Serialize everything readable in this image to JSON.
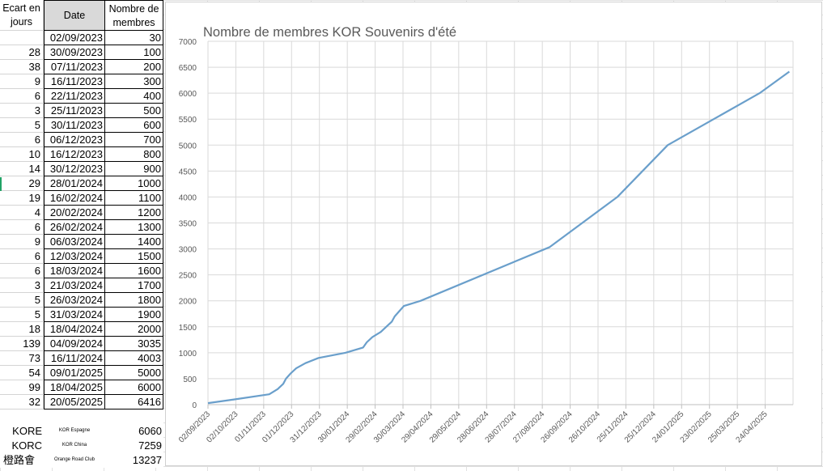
{
  "table": {
    "headers": {
      "gap": "Ecart en jours",
      "date": "Date",
      "members": "Nombre de membres"
    },
    "rows": [
      {
        "gap": "",
        "date": "02/09/2023",
        "members": "30"
      },
      {
        "gap": "28",
        "date": "30/09/2023",
        "members": "100"
      },
      {
        "gap": "38",
        "date": "07/11/2023",
        "members": "200"
      },
      {
        "gap": "9",
        "date": "16/11/2023",
        "members": "300"
      },
      {
        "gap": "6",
        "date": "22/11/2023",
        "members": "400"
      },
      {
        "gap": "3",
        "date": "25/11/2023",
        "members": "500"
      },
      {
        "gap": "5",
        "date": "30/11/2023",
        "members": "600"
      },
      {
        "gap": "6",
        "date": "06/12/2023",
        "members": "700"
      },
      {
        "gap": "10",
        "date": "16/12/2023",
        "members": "800"
      },
      {
        "gap": "14",
        "date": "30/12/2023",
        "members": "900"
      },
      {
        "gap": "29",
        "date": "28/01/2024",
        "members": "1000"
      },
      {
        "gap": "19",
        "date": "16/02/2024",
        "members": "1100"
      },
      {
        "gap": "4",
        "date": "20/02/2024",
        "members": "1200"
      },
      {
        "gap": "6",
        "date": "26/02/2024",
        "members": "1300"
      },
      {
        "gap": "9",
        "date": "06/03/2024",
        "members": "1400"
      },
      {
        "gap": "6",
        "date": "12/03/2024",
        "members": "1500"
      },
      {
        "gap": "6",
        "date": "18/03/2024",
        "members": "1600"
      },
      {
        "gap": "3",
        "date": "21/03/2024",
        "members": "1700"
      },
      {
        "gap": "5",
        "date": "26/03/2024",
        "members": "1800"
      },
      {
        "gap": "5",
        "date": "31/03/2024",
        "members": "1900"
      },
      {
        "gap": "18",
        "date": "18/04/2024",
        "members": "2000"
      },
      {
        "gap": "139",
        "date": "04/09/2024",
        "members": "3035"
      },
      {
        "gap": "73",
        "date": "16/11/2024",
        "members": "4003"
      },
      {
        "gap": "54",
        "date": "09/01/2025",
        "members": "5000"
      },
      {
        "gap": "99",
        "date": "18/04/2025",
        "members": "6000"
      },
      {
        "gap": "32",
        "date": "20/05/2025",
        "members": "6416"
      }
    ],
    "summary": [
      {
        "code": "KORE",
        "logo_text": "KOR Espagne",
        "value": "6060"
      },
      {
        "code": "KORC",
        "logo_text": "KOR China",
        "value": "7259"
      },
      {
        "code": "橙路會",
        "logo_text": "Orange Road Club",
        "value": "13237"
      }
    ]
  },
  "chart_data": {
    "type": "line",
    "title": "Nombre de membres KOR Souvenirs d'été",
    "x_dates": [
      "02/09/2023",
      "30/09/2023",
      "07/11/2023",
      "16/11/2023",
      "22/11/2023",
      "25/11/2023",
      "30/11/2023",
      "06/12/2023",
      "16/12/2023",
      "30/12/2023",
      "28/01/2024",
      "16/02/2024",
      "20/02/2024",
      "26/02/2024",
      "06/03/2024",
      "12/03/2024",
      "18/03/2024",
      "21/03/2024",
      "26/03/2024",
      "31/03/2024",
      "18/04/2024",
      "04/09/2024",
      "16/11/2024",
      "09/01/2025",
      "18/04/2025",
      "20/05/2025"
    ],
    "values": [
      30,
      100,
      200,
      300,
      400,
      500,
      600,
      700,
      800,
      900,
      1000,
      1100,
      1200,
      1300,
      1400,
      1500,
      1600,
      1700,
      1800,
      1900,
      2000,
      3035,
      4003,
      5000,
      6000,
      6416
    ],
    "x_tick_labels": [
      "02/09/2023",
      "02/10/2023",
      "01/11/2023",
      "01/12/2023",
      "31/12/2023",
      "30/01/2024",
      "29/02/2024",
      "30/03/2024",
      "29/04/2024",
      "29/05/2024",
      "28/06/2024",
      "28/07/2024",
      "27/08/2024",
      "26/09/2024",
      "26/10/2024",
      "25/11/2024",
      "25/12/2024",
      "24/01/2025",
      "23/02/2025",
      "25/03/2025",
      "24/04/2025"
    ],
    "y_tick_labels": [
      "0",
      "500",
      "1000",
      "1500",
      "2000",
      "2500",
      "3000",
      "3500",
      "4000",
      "4500",
      "5000",
      "5500",
      "6000",
      "6500",
      "7000"
    ],
    "ylim": [
      0,
      7000
    ],
    "xlim": [
      "02/09/2023",
      "24/05/2025"
    ],
    "grid": true,
    "line_color": "#6a9fcb"
  }
}
